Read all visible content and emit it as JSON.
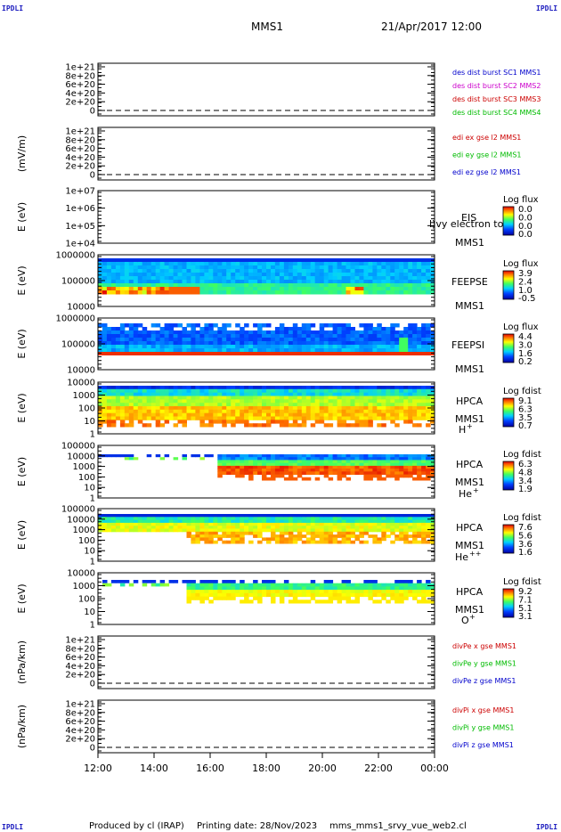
{
  "corner_label": "IPDLI",
  "header": {
    "spacecraft": "MMS1",
    "datetime": "21/Apr/2017 12:00"
  },
  "footer": {
    "produced_by": "Produced by cl (IRAP)",
    "printing_date": "Printing date: 28/Nov/2023",
    "script_name": "mms_mms1_srvy_vue_web2.cl"
  },
  "chart_data": [
    {
      "type": "line",
      "ylabel": "",
      "ticks": [
        "1e+21",
        "8e+20",
        "6e+20",
        "4e+20",
        "2e+20",
        "0"
      ],
      "series": [
        {
          "name": "des dist burst SC1 MMS1",
          "color": "#0000cc"
        },
        {
          "name": "des dist burst SC2 MMS2",
          "color": "#cc00cc"
        },
        {
          "name": "des dist burst SC3 MMS3",
          "color": "#cc0000"
        },
        {
          "name": "des dist burst SC4 MMS4",
          "color": "#00bb00"
        }
      ]
    },
    {
      "type": "line",
      "ylabel": "(mV/m)",
      "ticks": [
        "1e+21",
        "8e+20",
        "6e+20",
        "4e+20",
        "2e+20",
        "0"
      ],
      "series": [
        {
          "name": "edi ex gse l2 MMS1",
          "color": "#cc0000"
        },
        {
          "name": "edi ey gse l2 MMS1",
          "color": "#00bb00"
        },
        {
          "name": "edi ez gse l2 MMS1",
          "color": "#0000cc"
        }
      ]
    },
    {
      "type": "heatmap",
      "ylabel": "E (eV)",
      "ticks": [
        "1e+07",
        "1e+06",
        "1e+05",
        "1e+04"
      ],
      "instrument": "EIS",
      "sc": "MMS1",
      "extra": "l)vy electron to",
      "colorbar_title": "Log flux",
      "colorbar_ticks": [
        "0.0",
        "0.0",
        "0.0",
        "0.0"
      ],
      "fill": "none"
    },
    {
      "type": "heatmap",
      "ylabel": "E (eV)",
      "ticks": [
        "1000000",
        "100000",
        "10000"
      ],
      "instrument": "FEEPSE",
      "sc": "MMS1",
      "colorbar_title": "Log flux",
      "colorbar_ticks": [
        "3.9",
        "2.4",
        "1.0",
        "-0.5"
      ],
      "fill": "feepse"
    },
    {
      "type": "heatmap",
      "ylabel": "E (eV)",
      "ticks": [
        "1000000",
        "100000",
        "10000"
      ],
      "instrument": "FEEPSI",
      "sc": "MMS1",
      "colorbar_title": "Log flux",
      "colorbar_ticks": [
        "4.4",
        "3.0",
        "1.6",
        "0.2"
      ],
      "fill": "feepsi"
    },
    {
      "type": "heatmap",
      "ylabel": "E (eV)",
      "ticks": [
        "10000",
        "1000",
        "100",
        "10",
        "1"
      ],
      "instrument": "HPCA",
      "sc": "MMS1",
      "species": "H",
      "charge": "+",
      "colorbar_title": "Log fdist",
      "colorbar_ticks": [
        "9.1",
        "6.3",
        "3.5",
        "0.7"
      ],
      "fill": "hplus"
    },
    {
      "type": "heatmap",
      "ylabel": "E (eV)",
      "ticks": [
        "100000",
        "10000",
        "1000",
        "100",
        "10",
        "1"
      ],
      "instrument": "HPCA",
      "sc": "MMS1",
      "species": "He",
      "charge": "+",
      "colorbar_title": "Log fdist",
      "colorbar_ticks": [
        "6.3",
        "4.8",
        "3.4",
        "1.9"
      ],
      "fill": "heplus"
    },
    {
      "type": "heatmap",
      "ylabel": "E (eV)",
      "ticks": [
        "100000",
        "10000",
        "1000",
        "100",
        "10",
        "1"
      ],
      "instrument": "HPCA",
      "sc": "MMS1",
      "species": "He",
      "charge": "++",
      "colorbar_title": "Log fdist",
      "colorbar_ticks": [
        "7.6",
        "5.6",
        "3.6",
        "1.6"
      ],
      "fill": "heplusplus"
    },
    {
      "type": "heatmap",
      "ylabel": "E (eV)",
      "ticks": [
        "10000",
        "1000",
        "100",
        "10",
        "1"
      ],
      "instrument": "HPCA",
      "sc": "MMS1",
      "species": "O",
      "charge": "+",
      "colorbar_title": "Log fdist",
      "colorbar_ticks": [
        "9.2",
        "7.1",
        "5.1",
        "3.1"
      ],
      "fill": "oplus"
    },
    {
      "type": "line",
      "ylabel": "(nPa/km)",
      "ticks": [
        "1e+21",
        "8e+20",
        "6e+20",
        "4e+20",
        "2e+20",
        "0"
      ],
      "series": [
        {
          "name": "divPe x gse MMS1",
          "color": "#cc0000"
        },
        {
          "name": "divPe y gse MMS1",
          "color": "#00bb00"
        },
        {
          "name": "divPe z gse MMS1",
          "color": "#0000cc"
        }
      ]
    },
    {
      "type": "line",
      "ylabel": "(nPa/km)",
      "ticks": [
        "1e+21",
        "8e+20",
        "6e+20",
        "4e+20",
        "2e+20",
        "0"
      ],
      "series": [
        {
          "name": "divPi x gse MMS1",
          "color": "#cc0000"
        },
        {
          "name": "divPi y gse MMS1",
          "color": "#00bb00"
        },
        {
          "name": "divPi z gse MMS1",
          "color": "#0000cc"
        }
      ]
    }
  ],
  "x_ticks": [
    "12:00",
    "14:00",
    "16:00",
    "18:00",
    "20:00",
    "22:00",
    "00:00"
  ]
}
